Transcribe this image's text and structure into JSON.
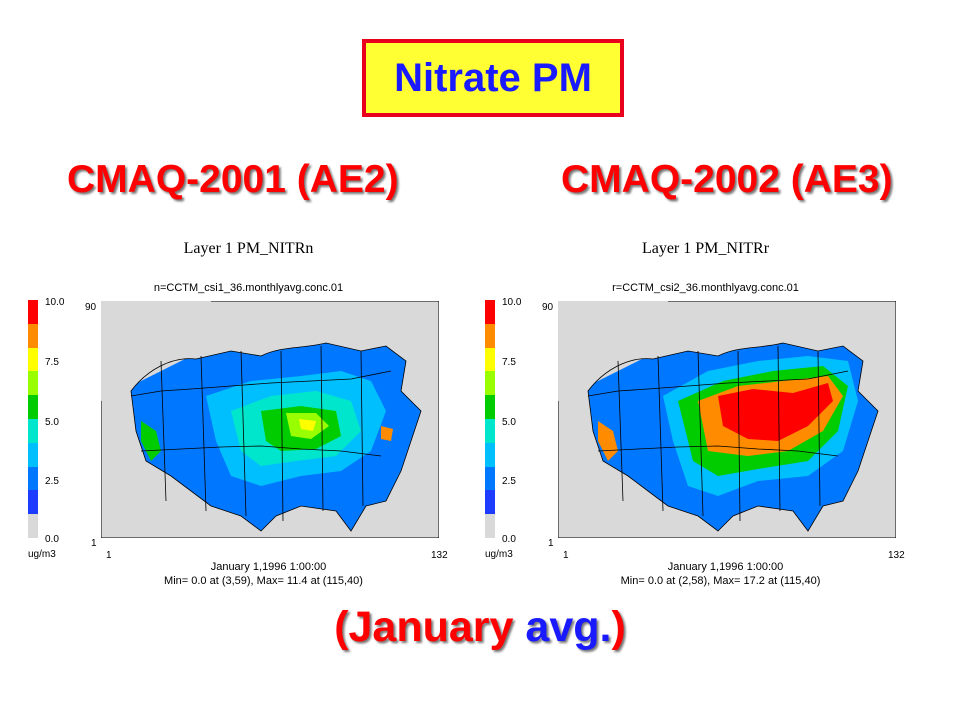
{
  "title": "Nitrate PM",
  "left_heading": "CMAQ-2001 (AE2)",
  "right_heading": "CMAQ-2002 (AE3)",
  "colors": {
    "title_text": "#1a1aff",
    "title_bg": "#ffff33",
    "title_border": "#e8001c",
    "heading_text": "#ff0000",
    "avg_blue": "#1a1aff"
  },
  "colorbar": {
    "colors": [
      "#ff0000",
      "#ff8c00",
      "#ffff00",
      "#99ff00",
      "#00cc00",
      "#00e6cc",
      "#00bfff",
      "#0077ff",
      "#1e3cff",
      "#d9d9d9"
    ],
    "labels": [
      "10.0",
      "7.5",
      "5.0",
      "2.5",
      "0.0"
    ],
    "units": "ug/m3"
  },
  "panels": [
    {
      "layer_title": "Layer 1  PM_NITRn",
      "file": "n=CCTM_csi1_36.monthlyavg.conc.01",
      "y_max": "90",
      "y_min": "1",
      "x_min": "1",
      "x_max": "132",
      "date": "January 1,1996 1:00:00",
      "minmax": "Min=     0.0 at (3,59), Max=     11.4 at (115,40)"
    },
    {
      "layer_title": "Layer 1  PM_NITRr",
      "file": "r=CCTM_csi2_36.monthlyavg.conc.01",
      "y_max": "90",
      "y_min": "1",
      "x_min": "1",
      "x_max": "132",
      "date": "January 1,1996 1:00:00",
      "minmax": "Min=     0.0 at (2,58), Max=     17.2 at (115,40)"
    }
  ],
  "footer": {
    "open": "(January ",
    "word": "avg.",
    "close": ")"
  }
}
